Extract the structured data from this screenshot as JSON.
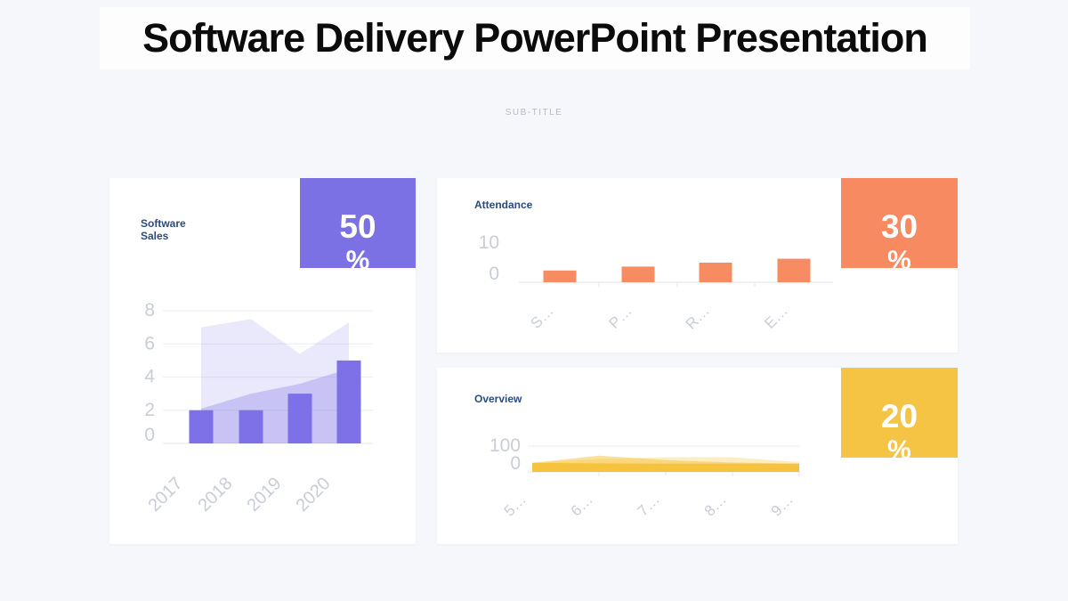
{
  "page": {
    "title": "Software Delivery PowerPoint Presentation",
    "subtitle": "SUB-TITLE"
  },
  "theme": {
    "purple": "#7b70e4",
    "orange": "#f78a61",
    "yellow": "#f6c444",
    "page_bg": "#f5f7fa",
    "card_bg": "#ffffff",
    "heading_color": "#2c4b7e",
    "axis_label_color": "#c9cdd6"
  },
  "cards": {
    "sales": {
      "title": "Software Sales",
      "badge_value": "50",
      "badge_unit": "%"
    },
    "attendance": {
      "title": "Attendance",
      "badge_value": "30",
      "badge_unit": "%"
    },
    "overview": {
      "title": "Overview",
      "badge_value": "20",
      "badge_unit": "%"
    }
  },
  "chart_data": [
    {
      "id": "software-sales",
      "type": "area+bar",
      "title": "Software Sales",
      "categories": [
        "2017",
        "2018",
        "2019",
        "2020"
      ],
      "series": [
        {
          "name": "range-band",
          "type": "area-band",
          "top_values": [
            7,
            7.5,
            5.4,
            7.3
          ],
          "base_values": [
            2.1,
            3,
            3.6,
            4.5
          ],
          "color": "#7b70e4",
          "opacity": 0.16
        },
        {
          "name": "trend-area",
          "type": "area",
          "values": [
            2.1,
            3,
            3.6,
            4.5
          ],
          "color": "#7b70e4",
          "opacity": 0.42
        },
        {
          "name": "sales-bars",
          "type": "bar",
          "values": [
            2,
            2,
            3,
            5
          ],
          "color": "#7e71e8"
        }
      ],
      "ylim": [
        0,
        8
      ],
      "yticks": [
        0,
        2,
        4,
        6,
        8
      ],
      "grid": true,
      "legend": "none"
    },
    {
      "id": "attendance",
      "type": "bar",
      "title": "Attendance",
      "categories": [
        "S…",
        "P…",
        "R…",
        "E…"
      ],
      "values": [
        3,
        4,
        5,
        6
      ],
      "color": "#f78c63",
      "ylim": [
        0,
        10
      ],
      "yticks": [
        0,
        10
      ],
      "grid": false,
      "legend": "none"
    },
    {
      "id": "overview",
      "type": "area",
      "title": "Overview",
      "categories": [
        "5…",
        "6…",
        "7…",
        "8…",
        "9…"
      ],
      "series": [
        {
          "name": "layer-light",
          "values": [
            35,
            50,
            57,
            57,
            38
          ],
          "color": "#f6c33e",
          "opacity": 0.3
        },
        {
          "name": "layer-mid",
          "values": [
            35,
            63,
            46,
            36,
            32
          ],
          "color": "#f6c33e",
          "opacity": 0.52
        },
        {
          "name": "layer-solid",
          "values": [
            35,
            33,
            32,
            32,
            32
          ],
          "color": "#f6c33e",
          "opacity": 1
        }
      ],
      "ylim": [
        0,
        100
      ],
      "yticks": [
        0,
        100
      ],
      "grid": true,
      "legend": "none"
    }
  ]
}
